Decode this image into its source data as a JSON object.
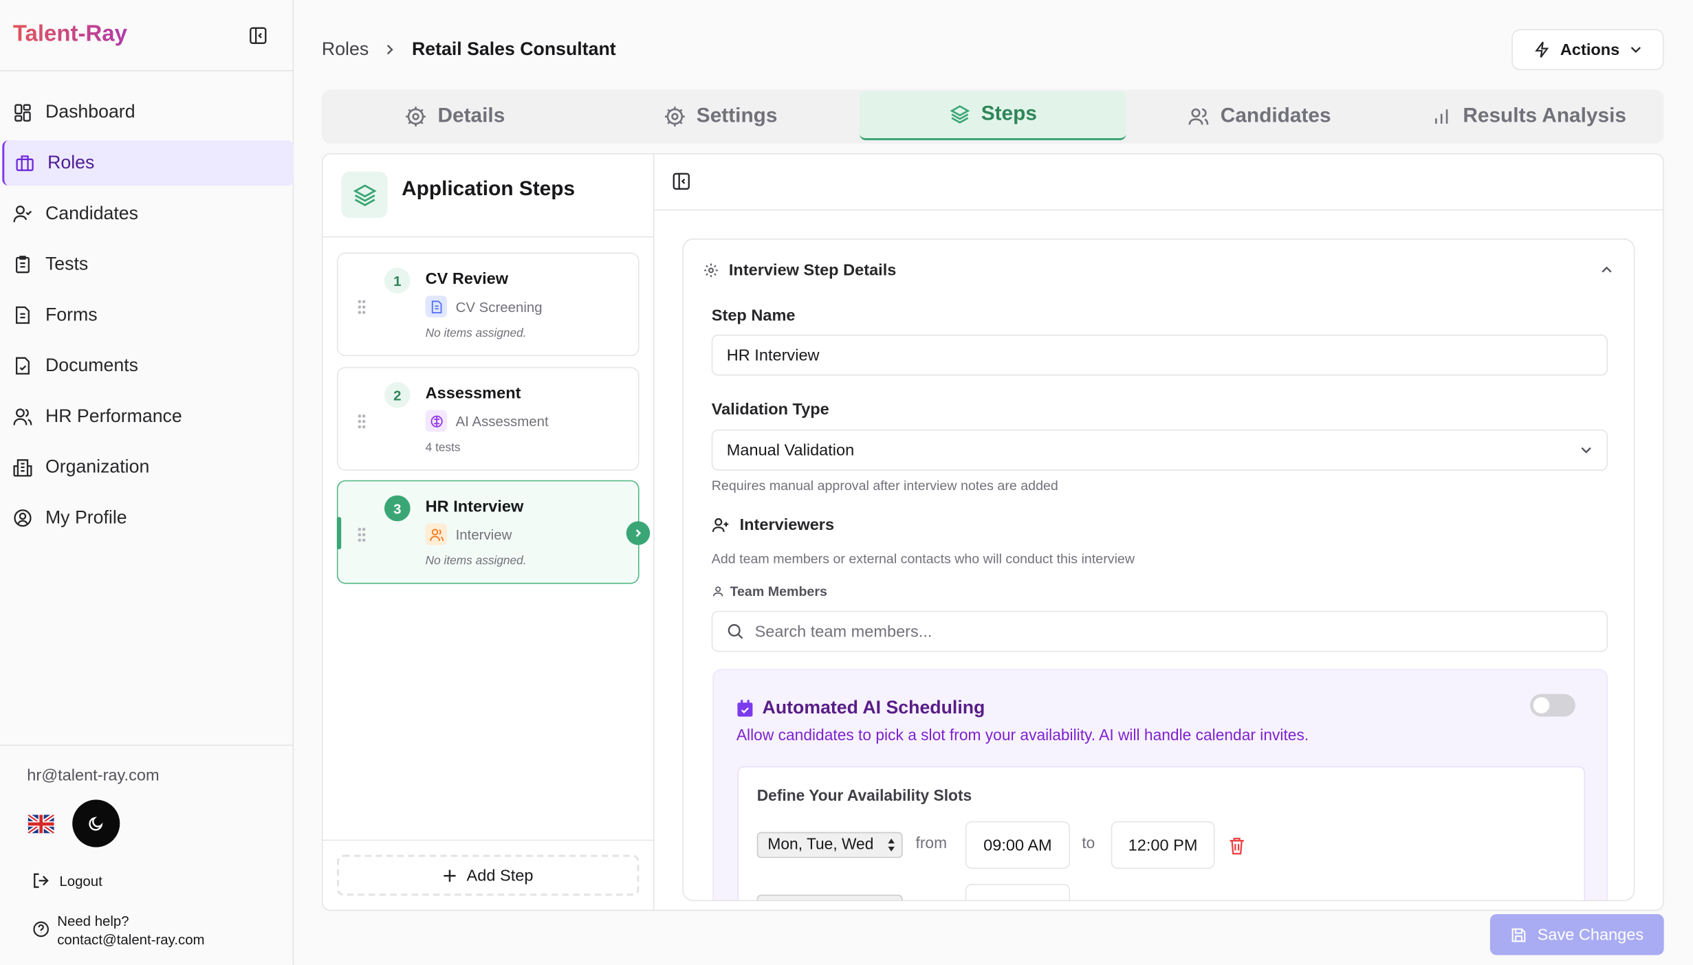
{
  "app": {
    "logo": "Talent-Ray"
  },
  "sidebar": {
    "items": [
      {
        "label": "Dashboard",
        "icon": "dashboard-icon"
      },
      {
        "label": "Roles",
        "icon": "briefcase-icon",
        "active": true
      },
      {
        "label": "Candidates",
        "icon": "user-check-icon"
      },
      {
        "label": "Tests",
        "icon": "clipboard-icon"
      },
      {
        "label": "Forms",
        "icon": "file-text-icon"
      },
      {
        "label": "Documents",
        "icon": "file-check-icon"
      },
      {
        "label": "HR Performance",
        "icon": "users-icon"
      },
      {
        "label": "Organization",
        "icon": "building-icon"
      },
      {
        "label": "My Profile",
        "icon": "user-circle-icon"
      }
    ],
    "email": "hr@talent-ray.com",
    "logout": "Logout",
    "help_title": "Need help?",
    "help_email": "contact@talent-ray.com"
  },
  "breadcrumb": {
    "parent": "Roles",
    "current": "Retail Sales Consultant"
  },
  "actions_label": "Actions",
  "tabs": [
    {
      "label": "Details"
    },
    {
      "label": "Settings"
    },
    {
      "label": "Steps",
      "active": true
    },
    {
      "label": "Candidates"
    },
    {
      "label": "Results Analysis"
    }
  ],
  "steps_panel": {
    "title": "Application Steps",
    "add_step": "Add Step",
    "steps": [
      {
        "num": "1",
        "name": "CV Review",
        "type": "CV Screening",
        "note": "No items assigned."
      },
      {
        "num": "2",
        "name": "Assessment",
        "type": "AI Assessment",
        "note": "4 tests"
      },
      {
        "num": "3",
        "name": "HR Interview",
        "type": "Interview",
        "note": "No items assigned.",
        "active": true
      }
    ]
  },
  "details": {
    "title": "Interview Step Details",
    "step_name_label": "Step Name",
    "step_name_value": "HR Interview",
    "validation_label": "Validation Type",
    "validation_value": "Manual Validation",
    "validation_help": "Requires manual approval after interview notes are added",
    "interviewers_label": "Interviewers",
    "interviewers_help": "Add team members or external contacts who will conduct this interview",
    "team_members_label": "Team Members",
    "search_placeholder": "Search team members...",
    "ai": {
      "title": "Automated AI Scheduling",
      "desc": "Allow candidates to pick a slot from your availability. AI will handle calendar invites.",
      "enabled": false,
      "slots_title": "Define Your Availability Slots",
      "days": "Mon, Tue, Wed",
      "from_label": "from",
      "from": "09:00 AM",
      "to_label": "to",
      "to": "12:00 PM"
    }
  },
  "save_label": "Save Changes",
  "colors": {
    "accent": "#7c3aed",
    "green": "#3aa675",
    "save": "#a9acf2"
  }
}
